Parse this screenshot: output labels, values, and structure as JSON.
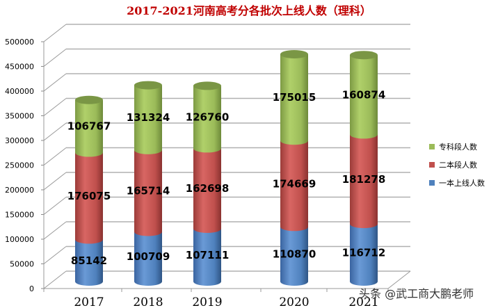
{
  "title": "2017-2021河南高考分各批次上线人数（理科）",
  "watermark": "头条 @武工商大鹏老师",
  "colors": {
    "series1": "#4f81bd",
    "series2": "#c0504d",
    "series3": "#9bbb59",
    "title": "#c00000"
  },
  "legend": [
    {
      "label": "专科段人数",
      "color": "#9bbb59"
    },
    {
      "label": "二本段人数",
      "color": "#c0504d"
    },
    {
      "label": "一本上线人数",
      "color": "#4f81bd"
    }
  ],
  "chart_data": {
    "type": "bar",
    "subtype": "stacked-3d-cylinder",
    "title": "2017-2021河南高考分各批次上线人数（理科）",
    "xlabel": "",
    "ylabel": "",
    "ylim": [
      0,
      500000
    ],
    "yticks": [
      0,
      50000,
      100000,
      150000,
      200000,
      250000,
      300000,
      350000,
      400000,
      450000,
      500000
    ],
    "categories": [
      "2017",
      "2018",
      "2019",
      "2020",
      "2021"
    ],
    "series": [
      {
        "name": "一本上线人数",
        "color": "#4f81bd",
        "values": [
          85142,
          100709,
          107111,
          110870,
          116712
        ]
      },
      {
        "name": "二本段人数",
        "color": "#c0504d",
        "values": [
          176075,
          165714,
          162698,
          174669,
          181278
        ]
      },
      {
        "name": "专科段人数",
        "color": "#9bbb59",
        "values": [
          106767,
          131324,
          126760,
          175015,
          160874
        ]
      }
    ],
    "grid": true,
    "legend_position": "right"
  }
}
